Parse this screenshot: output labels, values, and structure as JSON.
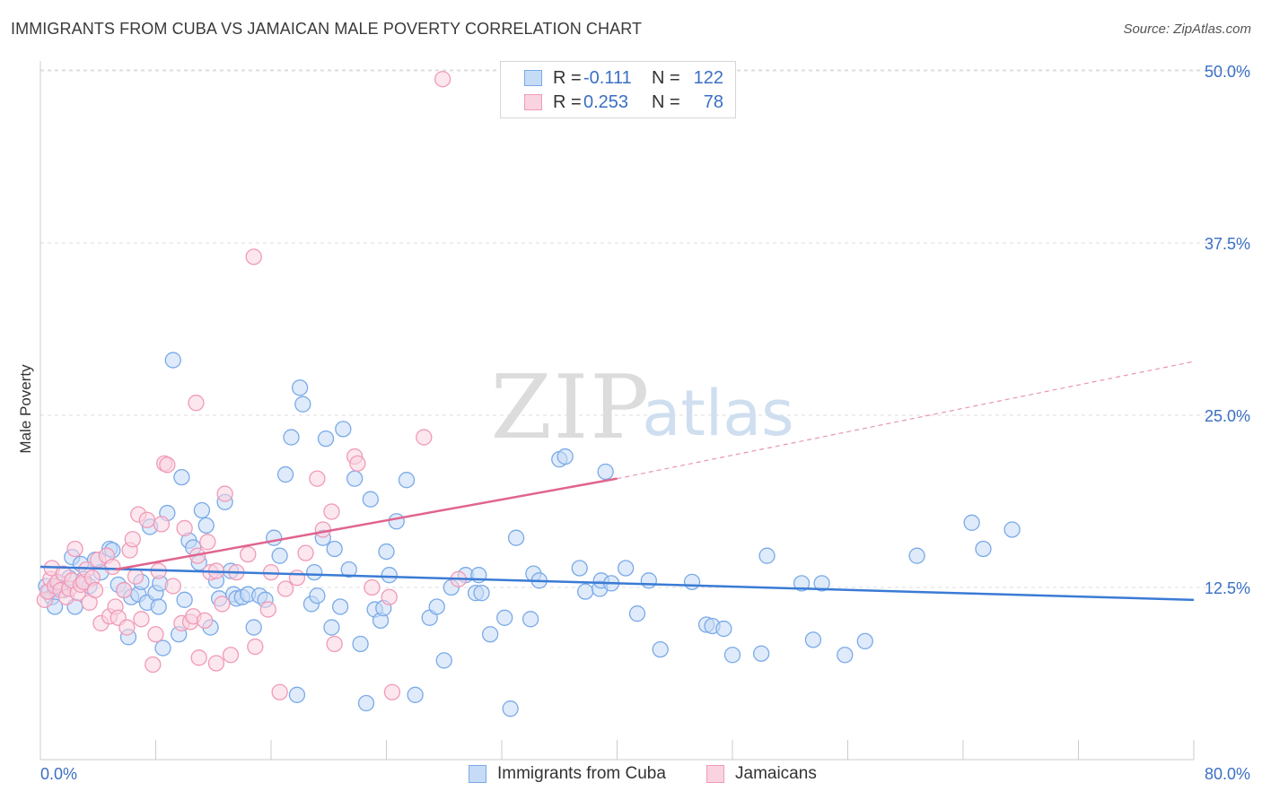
{
  "header": {
    "title": "IMMIGRANTS FROM CUBA VS JAMAICAN MALE POVERTY CORRELATION CHART",
    "source": "Source: ZipAtlas.com"
  },
  "watermark": {
    "zip": "ZIP",
    "atlas": "atlas"
  },
  "legend": {
    "rows": [
      {
        "r_label": "R =",
        "r_value": "-0.111",
        "n_label": "N =",
        "n_value": "122",
        "color": "#7aaae8",
        "fill": "#c5dbf6"
      },
      {
        "r_label": "R =",
        "r_value": "0.253",
        "n_label": "N =",
        "n_value": "78",
        "color": "#f09ab8",
        "fill": "#fad3e0"
      }
    ]
  },
  "chart_data": {
    "type": "scatter",
    "title": "IMMIGRANTS FROM CUBA VS JAMAICAN MALE POVERTY CORRELATION CHART",
    "xlabel": "",
    "ylabel": "Male Poverty",
    "xlim": [
      0,
      80
    ],
    "ylim": [
      0,
      50
    ],
    "x_tick_labels": [
      "0.0%",
      "80.0%"
    ],
    "y_tick_labels": [
      "12.5%",
      "25.0%",
      "37.5%",
      "50.0%"
    ],
    "y_ticks": [
      12.5,
      25.0,
      37.5,
      50.0
    ],
    "grid": "horizontal dashed",
    "legend_position": "top-center and bottom",
    "series": [
      {
        "name": "Immigrants from Cuba",
        "color": "#3a7bd5",
        "marker_fill": "#c5dbf6",
        "marker_stroke": "#7aaae8",
        "trend": {
          "x0": 0,
          "y0": 14.0,
          "x1": 80,
          "y1": 11.6,
          "style": "solid"
        },
        "points": [
          [
            0.4,
            12.6
          ],
          [
            0.6,
            12.2
          ],
          [
            0.8,
            11.8
          ],
          [
            1.0,
            11.1
          ],
          [
            1.2,
            12.5
          ],
          [
            1.4,
            12.8
          ],
          [
            1.6,
            12.3
          ],
          [
            2.0,
            13.2
          ],
          [
            2.2,
            14.7
          ],
          [
            2.4,
            11.1
          ],
          [
            2.8,
            14.2
          ],
          [
            3.0,
            13.1
          ],
          [
            3.4,
            12.6
          ],
          [
            3.8,
            14.5
          ],
          [
            4.2,
            13.6
          ],
          [
            4.8,
            15.3
          ],
          [
            5.0,
            15.2
          ],
          [
            5.4,
            12.7
          ],
          [
            5.8,
            12.3
          ],
          [
            6.1,
            8.9
          ],
          [
            6.3,
            11.8
          ],
          [
            6.8,
            12.0
          ],
          [
            7.0,
            12.9
          ],
          [
            7.4,
            11.4
          ],
          [
            7.6,
            16.9
          ],
          [
            8.0,
            12.1
          ],
          [
            8.2,
            11.1
          ],
          [
            8.3,
            12.8
          ],
          [
            8.5,
            8.1
          ],
          [
            8.8,
            17.9
          ],
          [
            9.2,
            29.0
          ],
          [
            9.6,
            9.1
          ],
          [
            9.8,
            20.5
          ],
          [
            10.0,
            11.6
          ],
          [
            10.3,
            15.9
          ],
          [
            10.6,
            15.4
          ],
          [
            11.0,
            14.3
          ],
          [
            11.2,
            18.1
          ],
          [
            11.5,
            17.0
          ],
          [
            11.8,
            9.6
          ],
          [
            12.2,
            13.0
          ],
          [
            12.4,
            11.7
          ],
          [
            12.8,
            18.7
          ],
          [
            13.2,
            13.7
          ],
          [
            13.4,
            12.0
          ],
          [
            13.6,
            11.7
          ],
          [
            14.0,
            11.8
          ],
          [
            14.4,
            12.0
          ],
          [
            14.8,
            9.6
          ],
          [
            15.2,
            11.9
          ],
          [
            15.6,
            11.6
          ],
          [
            16.2,
            16.1
          ],
          [
            16.6,
            14.8
          ],
          [
            17.0,
            20.7
          ],
          [
            17.4,
            23.4
          ],
          [
            17.8,
            4.7
          ],
          [
            18.0,
            27.0
          ],
          [
            18.2,
            25.8
          ],
          [
            18.8,
            11.3
          ],
          [
            19.0,
            13.6
          ],
          [
            19.2,
            11.9
          ],
          [
            19.6,
            16.1
          ],
          [
            19.8,
            23.3
          ],
          [
            20.2,
            9.6
          ],
          [
            20.4,
            15.3
          ],
          [
            20.8,
            11.1
          ],
          [
            21.0,
            24.0
          ],
          [
            21.4,
            13.8
          ],
          [
            21.8,
            20.4
          ],
          [
            22.2,
            8.4
          ],
          [
            22.6,
            4.1
          ],
          [
            22.9,
            18.9
          ],
          [
            23.2,
            10.9
          ],
          [
            23.6,
            10.1
          ],
          [
            23.8,
            11.0
          ],
          [
            24.0,
            15.1
          ],
          [
            24.2,
            13.4
          ],
          [
            24.7,
            17.3
          ],
          [
            25.4,
            20.3
          ],
          [
            26.0,
            4.7
          ],
          [
            27.0,
            10.3
          ],
          [
            27.5,
            11.1
          ],
          [
            28.0,
            7.2
          ],
          [
            28.5,
            12.5
          ],
          [
            29.5,
            13.4
          ],
          [
            30.2,
            12.1
          ],
          [
            30.6,
            12.1
          ],
          [
            30.4,
            13.4
          ],
          [
            31.2,
            9.1
          ],
          [
            32.2,
            10.3
          ],
          [
            32.6,
            3.7
          ],
          [
            33.0,
            16.1
          ],
          [
            34.0,
            10.2
          ],
          [
            34.2,
            13.5
          ],
          [
            34.6,
            13.0
          ],
          [
            36.0,
            21.8
          ],
          [
            36.4,
            22.0
          ],
          [
            37.4,
            13.9
          ],
          [
            37.8,
            12.2
          ],
          [
            38.8,
            12.4
          ],
          [
            38.9,
            13.0
          ],
          [
            39.2,
            20.9
          ],
          [
            39.6,
            12.8
          ],
          [
            40.6,
            13.9
          ],
          [
            41.4,
            10.6
          ],
          [
            42.2,
            13.0
          ],
          [
            43.0,
            8.0
          ],
          [
            45.2,
            12.9
          ],
          [
            46.2,
            9.8
          ],
          [
            46.6,
            9.7
          ],
          [
            47.4,
            9.5
          ],
          [
            48.0,
            7.6
          ],
          [
            50.0,
            7.7
          ],
          [
            50.4,
            14.8
          ],
          [
            52.8,
            12.8
          ],
          [
            53.6,
            8.7
          ],
          [
            54.2,
            12.8
          ],
          [
            55.8,
            7.6
          ],
          [
            57.2,
            8.6
          ],
          [
            60.8,
            14.8
          ],
          [
            64.6,
            17.2
          ],
          [
            65.4,
            15.3
          ],
          [
            67.4,
            16.7
          ]
        ]
      },
      {
        "name": "Jamaicans",
        "color": "#e0648e",
        "marker_fill": "#fad3e0",
        "marker_stroke": "#f09ab8",
        "trend": {
          "x0": 5.2,
          "y0": 13.8,
          "x1": 40.0,
          "y1": 20.4,
          "x2": 80,
          "y2": 28.9,
          "style": "solid then dashed"
        },
        "points": [
          [
            0.3,
            11.6
          ],
          [
            0.5,
            12.2
          ],
          [
            0.7,
            13.1
          ],
          [
            0.8,
            13.9
          ],
          [
            1.0,
            12.6
          ],
          [
            1.2,
            12.9
          ],
          [
            1.4,
            12.3
          ],
          [
            1.6,
            13.5
          ],
          [
            1.8,
            11.8
          ],
          [
            2.0,
            12.4
          ],
          [
            2.2,
            13.0
          ],
          [
            2.4,
            15.3
          ],
          [
            2.6,
            12.1
          ],
          [
            2.8,
            12.7
          ],
          [
            3.0,
            12.9
          ],
          [
            3.2,
            13.8
          ],
          [
            3.4,
            11.4
          ],
          [
            3.6,
            13.2
          ],
          [
            3.8,
            12.3
          ],
          [
            4.0,
            14.5
          ],
          [
            4.2,
            9.9
          ],
          [
            4.6,
            14.8
          ],
          [
            4.8,
            10.4
          ],
          [
            5.0,
            14.0
          ],
          [
            5.2,
            11.1
          ],
          [
            5.4,
            10.3
          ],
          [
            5.8,
            12.3
          ],
          [
            6.0,
            9.6
          ],
          [
            6.2,
            15.2
          ],
          [
            6.4,
            16.0
          ],
          [
            6.6,
            13.3
          ],
          [
            6.8,
            17.8
          ],
          [
            7.0,
            10.2
          ],
          [
            7.4,
            17.4
          ],
          [
            7.8,
            6.9
          ],
          [
            8.0,
            9.1
          ],
          [
            8.2,
            13.7
          ],
          [
            8.4,
            17.1
          ],
          [
            8.6,
            21.5
          ],
          [
            8.8,
            21.4
          ],
          [
            9.2,
            12.6
          ],
          [
            9.8,
            9.9
          ],
          [
            10.0,
            16.8
          ],
          [
            10.4,
            10.0
          ],
          [
            10.6,
            10.4
          ],
          [
            10.8,
            25.9
          ],
          [
            10.9,
            14.8
          ],
          [
            11.0,
            7.4
          ],
          [
            11.4,
            10.1
          ],
          [
            11.6,
            15.8
          ],
          [
            11.8,
            13.6
          ],
          [
            12.2,
            13.7
          ],
          [
            12.2,
            7.0
          ],
          [
            12.6,
            11.3
          ],
          [
            12.8,
            19.3
          ],
          [
            13.2,
            7.6
          ],
          [
            13.6,
            13.6
          ],
          [
            14.4,
            14.9
          ],
          [
            14.8,
            36.5
          ],
          [
            14.9,
            8.2
          ],
          [
            15.8,
            10.9
          ],
          [
            16.0,
            13.6
          ],
          [
            16.6,
            4.9
          ],
          [
            17.0,
            12.4
          ],
          [
            17.8,
            13.2
          ],
          [
            18.4,
            15.0
          ],
          [
            19.2,
            20.4
          ],
          [
            19.6,
            16.7
          ],
          [
            20.2,
            18.0
          ],
          [
            20.4,
            8.4
          ],
          [
            21.8,
            22.0
          ],
          [
            22.0,
            21.5
          ],
          [
            23.0,
            12.5
          ],
          [
            24.2,
            11.8
          ],
          [
            24.4,
            4.9
          ],
          [
            26.6,
            23.4
          ],
          [
            27.9,
            49.4
          ],
          [
            29.0,
            13.1
          ]
        ]
      }
    ]
  },
  "bottom_legend": {
    "items": [
      {
        "label": "Immigrants from Cuba",
        "color": "#7aaae8",
        "fill": "#c5dbf6"
      },
      {
        "label": "Jamaicans",
        "color": "#f09ab8",
        "fill": "#fad3e0"
      }
    ]
  }
}
